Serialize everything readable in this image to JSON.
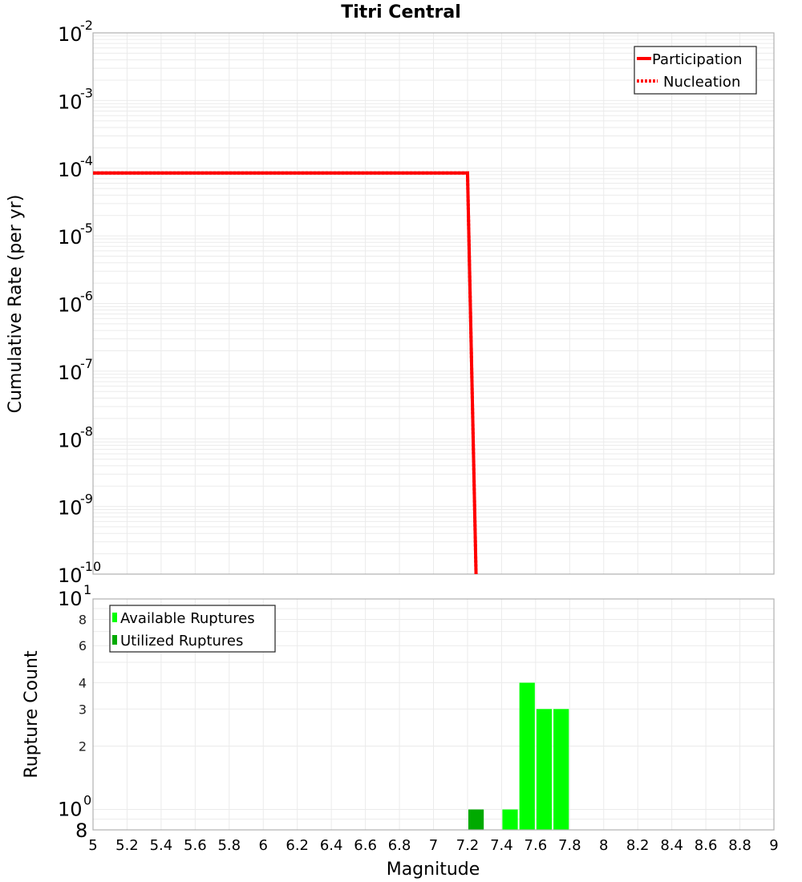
{
  "chart_data": [
    {
      "type": "line",
      "title": "Titri Central",
      "xlabel": "",
      "ylabel": "Cumulative Rate (per yr)",
      "yscale": "log",
      "xlim": [
        5,
        9
      ],
      "ylim": [
        1e-10,
        0.01
      ],
      "grid": true,
      "legend_position": "top-right",
      "y_ticks": [
        "10^-2",
        "10^-3",
        "10^-4",
        "10^-5",
        "10^-6",
        "10^-7",
        "10^-8",
        "10^-9",
        "10^-10"
      ],
      "series": [
        {
          "name": "Participation",
          "style": "solid",
          "color": "#ff0000",
          "x": [
            5.0,
            7.2,
            7.25
          ],
          "y": [
            8.5e-05,
            8.5e-05,
            1e-10
          ]
        },
        {
          "name": "Nucleation",
          "style": "dotted",
          "color": "#ff0000",
          "x": [
            5.0,
            7.2,
            7.25
          ],
          "y": [
            8.5e-05,
            8.5e-05,
            1e-10
          ]
        }
      ]
    },
    {
      "type": "bar",
      "title": "",
      "xlabel": "Magnitude",
      "ylabel": "Rupture Count",
      "yscale": "log",
      "xlim": [
        5,
        9
      ],
      "ylim": [
        0.8,
        10
      ],
      "grid": true,
      "legend_position": "top-left",
      "x_ticks": [
        "5",
        "5.2",
        "5.4",
        "5.6",
        "5.8",
        "6",
        "6.2",
        "6.4",
        "6.6",
        "6.8",
        "7",
        "7.2",
        "7.4",
        "7.6",
        "7.8",
        "8",
        "8.2",
        "8.4",
        "8.6",
        "8.8",
        "9"
      ],
      "y_ticks": [
        "10^1",
        "8",
        "6",
        "4",
        "3",
        "2",
        "10^0",
        "8"
      ],
      "bar_width": 0.1,
      "series": [
        {
          "name": "Available Ruptures",
          "color": "#00ff00",
          "x": [
            7.45,
            7.55,
            7.65,
            7.75
          ],
          "values": [
            1,
            4,
            3,
            3
          ]
        },
        {
          "name": "Utilized Ruptures",
          "color": "#00aa00",
          "x": [
            7.25
          ],
          "values": [
            1
          ]
        }
      ]
    }
  ],
  "labels": {
    "title": "Titri Central",
    "top_ylabel": "Cumulative Rate (per yr)",
    "bottom_ylabel": "Rupture Count",
    "xlabel": "Magnitude",
    "legend_top": [
      "Participation",
      "Nucleation"
    ],
    "legend_bottom": [
      "Available Ruptures",
      "Utilized Ruptures"
    ]
  },
  "colors": {
    "participation": "#ff0000",
    "available": "#00ff00",
    "utilized": "#00aa00",
    "grid": "#ebebeb",
    "frame": "#b0b0b0"
  }
}
